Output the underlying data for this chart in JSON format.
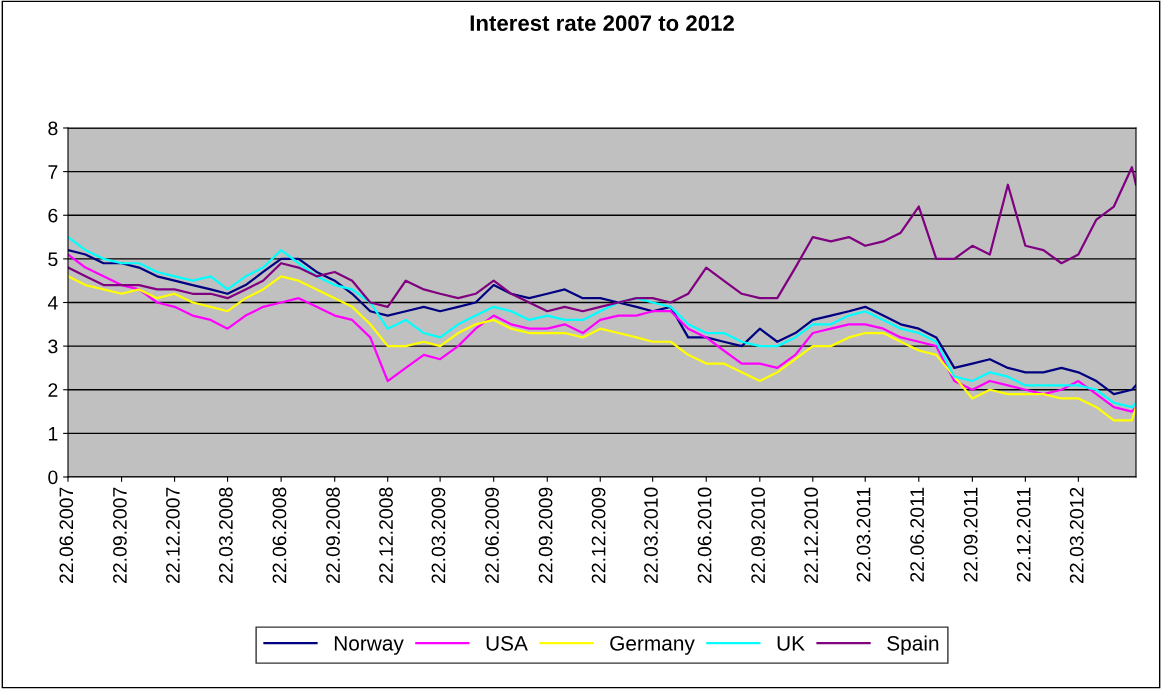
{
  "chart_data": {
    "type": "line",
    "title": "Interest rate 2007 to 2012",
    "x": [
      "2007-06-22",
      "2007-07-22",
      "2007-08-22",
      "2007-09-22",
      "2007-10-22",
      "2007-11-22",
      "2007-12-22",
      "2008-01-22",
      "2008-02-22",
      "2008-03-22",
      "2008-04-22",
      "2008-05-22",
      "2008-06-22",
      "2008-07-22",
      "2008-08-22",
      "2008-09-22",
      "2008-10-22",
      "2008-11-22",
      "2008-12-22",
      "2009-01-22",
      "2009-02-22",
      "2009-03-22",
      "2009-04-22",
      "2009-05-22",
      "2009-06-22",
      "2009-07-22",
      "2009-08-22",
      "2009-09-22",
      "2009-10-22",
      "2009-11-22",
      "2009-12-22",
      "2010-01-22",
      "2010-02-22",
      "2010-03-22",
      "2010-04-22",
      "2010-05-22",
      "2010-06-22",
      "2010-07-22",
      "2010-08-22",
      "2010-09-22",
      "2010-10-22",
      "2010-11-22",
      "2010-12-22",
      "2011-01-22",
      "2011-02-22",
      "2011-03-22",
      "2011-04-22",
      "2011-05-22",
      "2011-06-22",
      "2011-07-22",
      "2011-08-22",
      "2011-09-22",
      "2011-10-22",
      "2011-11-22",
      "2011-12-22",
      "2012-01-22",
      "2012-02-22",
      "2012-03-22",
      "2012-04-22",
      "2012-05-22",
      "2012-06-22",
      "2012-06-29"
    ],
    "series": [
      {
        "name": "Norway",
        "color": "#000080",
        "values": [
          5.2,
          5.1,
          4.9,
          4.9,
          4.8,
          4.6,
          4.5,
          4.4,
          4.3,
          4.2,
          4.4,
          4.7,
          5.0,
          5.0,
          4.7,
          4.5,
          4.2,
          3.8,
          3.7,
          3.8,
          3.9,
          3.8,
          3.9,
          4.0,
          4.4,
          4.2,
          4.1,
          4.2,
          4.3,
          4.1,
          4.1,
          4.0,
          3.9,
          3.8,
          3.9,
          3.2,
          3.2,
          3.1,
          3.0,
          3.4,
          3.1,
          3.3,
          3.6,
          3.7,
          3.8,
          3.9,
          3.7,
          3.5,
          3.4,
          3.2,
          2.5,
          2.6,
          2.7,
          2.5,
          2.4,
          2.4,
          2.5,
          2.4,
          2.2,
          1.9,
          2.0,
          2.1
        ]
      },
      {
        "name": "USA",
        "color": "#ff00ff",
        "values": [
          5.1,
          4.8,
          4.6,
          4.4,
          4.3,
          4.0,
          3.9,
          3.7,
          3.6,
          3.4,
          3.7,
          3.9,
          4.0,
          4.1,
          3.9,
          3.7,
          3.6,
          3.2,
          2.2,
          2.5,
          2.8,
          2.7,
          3.0,
          3.4,
          3.7,
          3.5,
          3.4,
          3.4,
          3.5,
          3.3,
          3.6,
          3.7,
          3.7,
          3.8,
          3.8,
          3.4,
          3.2,
          2.9,
          2.6,
          2.6,
          2.5,
          2.8,
          3.3,
          3.4,
          3.5,
          3.5,
          3.4,
          3.2,
          3.1,
          3.0,
          2.2,
          2.0,
          2.2,
          2.1,
          2.0,
          1.9,
          2.0,
          2.2,
          1.9,
          1.6,
          1.5,
          1.6
        ]
      },
      {
        "name": "Germany",
        "color": "#ffff00",
        "values": [
          4.6,
          4.4,
          4.3,
          4.2,
          4.3,
          4.1,
          4.2,
          4.0,
          3.9,
          3.8,
          4.1,
          4.3,
          4.6,
          4.5,
          4.3,
          4.1,
          3.9,
          3.5,
          3.0,
          3.0,
          3.1,
          3.0,
          3.3,
          3.5,
          3.6,
          3.4,
          3.3,
          3.3,
          3.3,
          3.2,
          3.4,
          3.3,
          3.2,
          3.1,
          3.1,
          2.8,
          2.6,
          2.6,
          2.4,
          2.2,
          2.4,
          2.7,
          3.0,
          3.0,
          3.2,
          3.3,
          3.3,
          3.1,
          2.9,
          2.8,
          2.3,
          1.8,
          2.0,
          1.9,
          1.9,
          1.9,
          1.8,
          1.8,
          1.6,
          1.3,
          1.3,
          1.6
        ]
      },
      {
        "name": "UK",
        "color": "#00ffff",
        "values": [
          5.5,
          5.2,
          5.0,
          4.9,
          4.9,
          4.7,
          4.6,
          4.5,
          4.6,
          4.3,
          4.6,
          4.8,
          5.2,
          4.9,
          4.6,
          4.4,
          4.3,
          4.0,
          3.4,
          3.6,
          3.3,
          3.2,
          3.5,
          3.7,
          3.9,
          3.8,
          3.6,
          3.7,
          3.6,
          3.6,
          3.8,
          4.0,
          4.1,
          4.0,
          3.9,
          3.5,
          3.3,
          3.3,
          3.1,
          3.0,
          3.0,
          3.2,
          3.5,
          3.5,
          3.7,
          3.8,
          3.6,
          3.4,
          3.3,
          3.1,
          2.3,
          2.2,
          2.4,
          2.3,
          2.1,
          2.1,
          2.1,
          2.1,
          2.0,
          1.7,
          1.6,
          1.7
        ]
      },
      {
        "name": "Spain",
        "color": "#800080",
        "values": [
          4.8,
          4.6,
          4.4,
          4.4,
          4.4,
          4.3,
          4.3,
          4.2,
          4.2,
          4.1,
          4.3,
          4.5,
          4.9,
          4.8,
          4.6,
          4.7,
          4.5,
          4.0,
          3.9,
          4.5,
          4.3,
          4.2,
          4.1,
          4.2,
          4.5,
          4.2,
          4.0,
          3.8,
          3.9,
          3.8,
          3.9,
          4.0,
          4.1,
          4.1,
          4.0,
          4.2,
          4.8,
          4.5,
          4.2,
          4.1,
          4.1,
          4.8,
          5.5,
          5.4,
          5.5,
          5.3,
          5.4,
          5.6,
          6.2,
          5.0,
          5.0,
          5.3,
          5.1,
          6.7,
          5.3,
          5.2,
          4.9,
          5.1,
          5.9,
          6.2,
          7.1,
          6.7
        ]
      }
    ],
    "xlim": [
      "2007-06-22",
      "2012-06-29"
    ],
    "xticks": [
      {
        "value": "2007-06-22",
        "label": "22.06.2007"
      },
      {
        "value": "2007-09-22",
        "label": "22.09.2007"
      },
      {
        "value": "2007-12-22",
        "label": "22.12.2007"
      },
      {
        "value": "2008-03-22",
        "label": "22.03.2008"
      },
      {
        "value": "2008-06-22",
        "label": "22.06.2008"
      },
      {
        "value": "2008-09-22",
        "label": "22.09.2008"
      },
      {
        "value": "2008-12-22",
        "label": "22.12.2008"
      },
      {
        "value": "2009-03-22",
        "label": "22.03.2009"
      },
      {
        "value": "2009-06-22",
        "label": "22.06.2009"
      },
      {
        "value": "2009-09-22",
        "label": "22.09.2009"
      },
      {
        "value": "2009-12-22",
        "label": "22.12.2009"
      },
      {
        "value": "2010-03-22",
        "label": "22.03.2010"
      },
      {
        "value": "2010-06-22",
        "label": "22.06.2010"
      },
      {
        "value": "2010-09-22",
        "label": "22.09.2010"
      },
      {
        "value": "2010-12-22",
        "label": "22.12.2010"
      },
      {
        "value": "2011-03-22",
        "label": "22.03.2011"
      },
      {
        "value": "2011-06-22",
        "label": "22.06.2011"
      },
      {
        "value": "2011-09-22",
        "label": "22.09.2011"
      },
      {
        "value": "2011-12-22",
        "label": "22.12.2011"
      },
      {
        "value": "2012-03-22",
        "label": "22.03.2012"
      }
    ],
    "ylim": [
      0,
      8
    ],
    "yticks": [
      0,
      1,
      2,
      3,
      4,
      5,
      6,
      7,
      8
    ],
    "grid": "y",
    "legend": "bottom",
    "marker": "none",
    "line_style": "solid"
  }
}
